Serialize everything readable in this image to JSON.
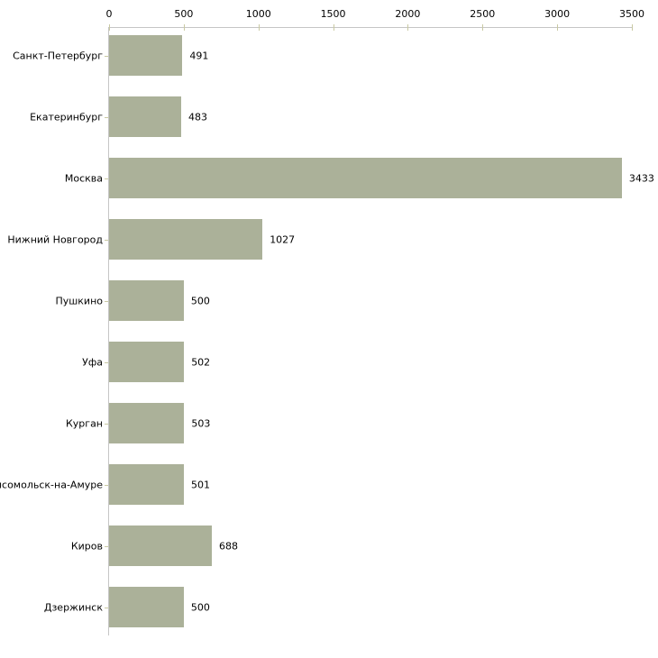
{
  "chart_data": {
    "type": "bar",
    "orientation": "horizontal",
    "title": "",
    "xlabel": "",
    "ylabel": "",
    "categories": [
      "Санкт-Петербург",
      "Екатеринбург",
      "Москва",
      "Нижний Новгород",
      "Пушкино",
      "Уфа",
      "Курган",
      "мсомольск-на-Амуре",
      "Киров",
      "Дзержинск"
    ],
    "values": [
      491,
      483,
      3433,
      1027,
      500,
      502,
      503,
      501,
      688,
      500
    ],
    "value_labels": [
      "491",
      "483",
      "3433",
      "1027",
      "500",
      "502",
      "503",
      "501",
      "688",
      "500"
    ],
    "x_ticks": [
      0,
      500,
      1000,
      1500,
      2000,
      2500,
      3000,
      3500
    ],
    "x_tick_labels": [
      "0",
      "500",
      "1000",
      "1500",
      "2000",
      "2500",
      "3000",
      "3500"
    ],
    "xlim": [
      0,
      3500
    ],
    "grid": false,
    "legend": false,
    "axis_position": "top",
    "colors": {
      "bar_fill": "#abb199",
      "axis_line": "#c6c6c6",
      "tick_mark": "#c9c9a3",
      "text": "#000000",
      "background": "#ffffff"
    }
  }
}
